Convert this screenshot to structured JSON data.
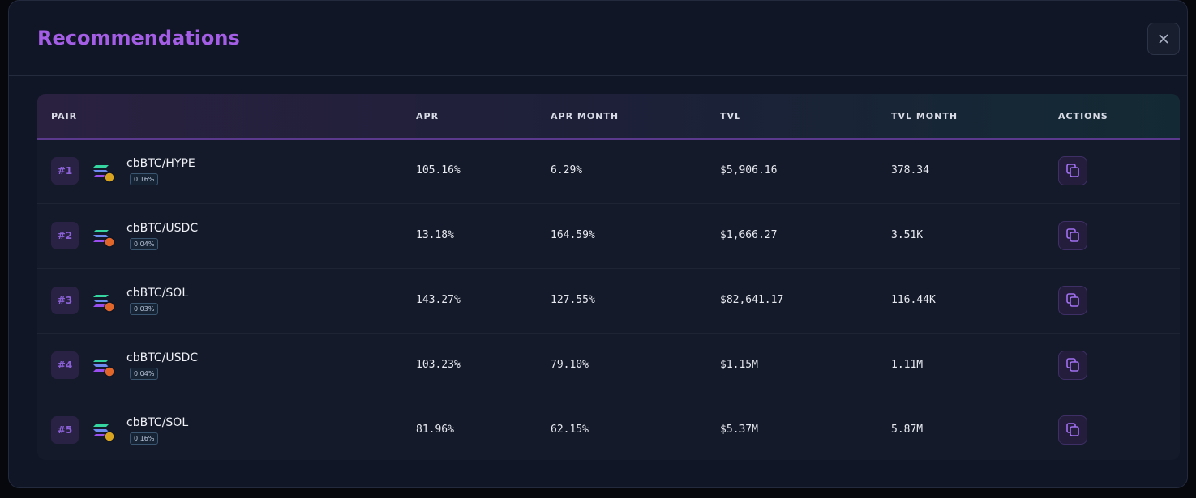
{
  "header": {
    "title": "Recommendations"
  },
  "table": {
    "columns": [
      "PAIR",
      "APR",
      "APR MONTH",
      "TVL",
      "TVL MONTH",
      "ACTIONS"
    ],
    "rows": [
      {
        "rank": "#1",
        "pair": "cbBTC/HYPE",
        "fee": "0.16%",
        "apr": "105.16%",
        "apr_month": "6.29%",
        "tvl": "$5,906.16",
        "tvl_month": "378.34"
      },
      {
        "rank": "#2",
        "pair": "cbBTC/USDC",
        "fee": "0.04%",
        "apr": "13.18%",
        "apr_month": "164.59%",
        "tvl": "$1,666.27",
        "tvl_month": "3.51K"
      },
      {
        "rank": "#3",
        "pair": "cbBTC/SOL",
        "fee": "0.03%",
        "apr": "143.27%",
        "apr_month": "127.55%",
        "tvl": "$82,641.17",
        "tvl_month": "116.44K"
      },
      {
        "rank": "#4",
        "pair": "cbBTC/USDC",
        "fee": "0.04%",
        "apr": "103.23%",
        "apr_month": "79.10%",
        "tvl": "$1.15M",
        "tvl_month": "1.11M"
      },
      {
        "rank": "#5",
        "pair": "cbBTC/SOL",
        "fee": "0.16%",
        "apr": "81.96%",
        "apr_month": "62.15%",
        "tvl": "$5.37M",
        "tvl_month": "5.87M"
      }
    ]
  }
}
